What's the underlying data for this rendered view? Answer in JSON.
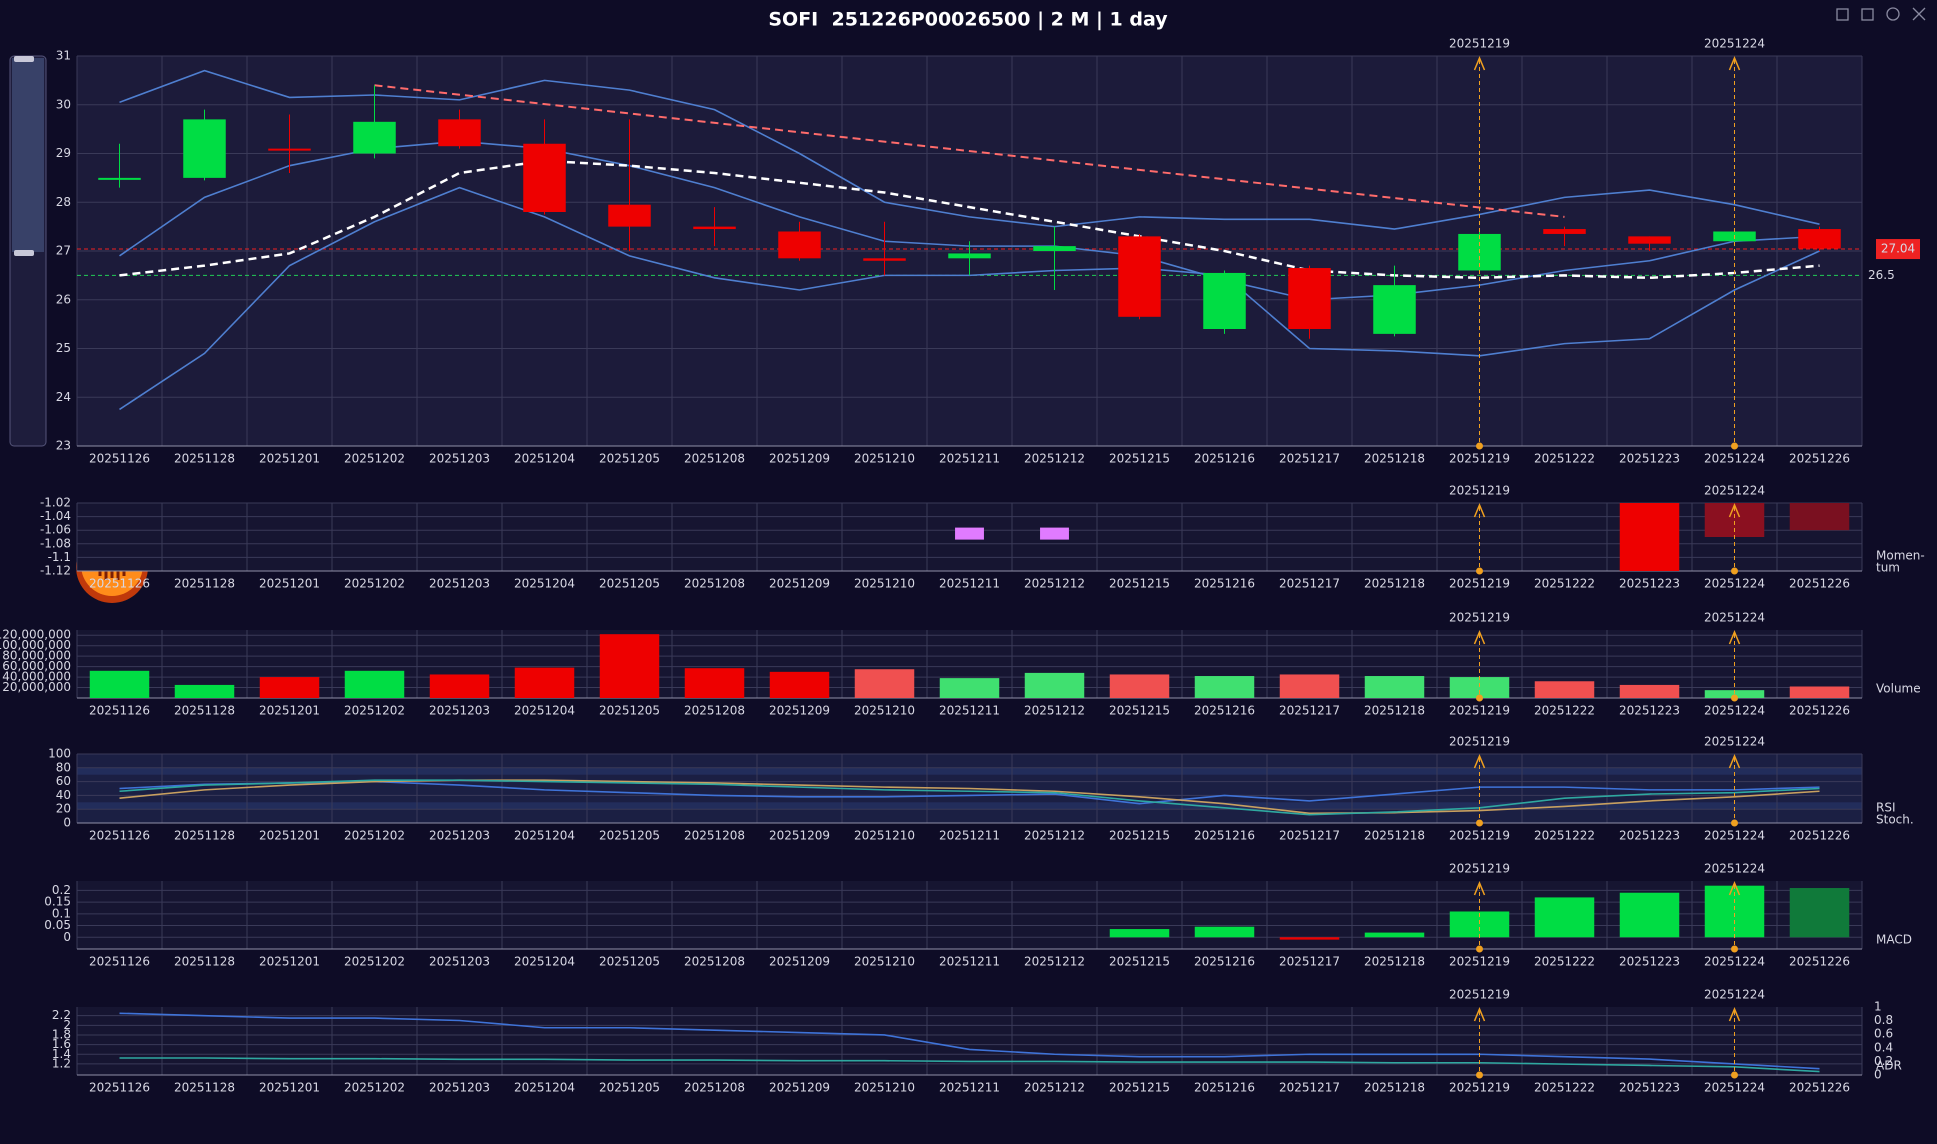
{
  "title": "SOFI  251226P00026500 | 2 M | 1 day",
  "chart_data": [
    {
      "type": "candlestick",
      "categories": [
        "20251126",
        "20251128",
        "20251201",
        "20251202",
        "20251203",
        "20251204",
        "20251205",
        "20251208",
        "20251209",
        "20251210",
        "20251211",
        "20251212",
        "20251215",
        "20251216",
        "20251217",
        "20251218",
        "20251219",
        "20251222",
        "20251223",
        "20251224",
        "20251226"
      ],
      "markers": [
        "20251219",
        "20251224"
      ],
      "open": [
        28.5,
        28.5,
        29.1,
        29.0,
        29.7,
        29.2,
        27.95,
        27.5,
        27.4,
        26.85,
        26.85,
        27.0,
        27.3,
        25.4,
        26.65,
        25.3,
        26.6,
        27.45,
        27.3,
        27.2,
        27.45
      ],
      "high": [
        29.2,
        29.9,
        29.8,
        30.4,
        29.9,
        29.7,
        29.7,
        27.9,
        27.6,
        27.6,
        27.2,
        27.5,
        27.35,
        26.6,
        26.7,
        26.7,
        27.4,
        27.5,
        27.3,
        27.45,
        27.5
      ],
      "low": [
        28.3,
        28.45,
        28.6,
        28.9,
        29.1,
        27.75,
        27.0,
        27.1,
        26.8,
        26.5,
        26.5,
        26.2,
        25.6,
        25.3,
        25.2,
        25.25,
        26.55,
        27.1,
        27.0,
        27.1,
        27.0
      ],
      "close": [
        28.5,
        29.7,
        29.08,
        29.65,
        29.15,
        27.8,
        27.5,
        27.45,
        26.85,
        26.8,
        26.95,
        27.1,
        25.65,
        26.55,
        25.4,
        26.3,
        27.35,
        27.35,
        27.15,
        27.4,
        27.05
      ],
      "up_color": "#00dd44",
      "down_color": "#ee0000",
      "overlays": [
        {
          "color": "#4f7fd0",
          "dash": false,
          "values": [
            30.05,
            30.7,
            30.15,
            30.2,
            30.1,
            30.5,
            30.3,
            29.9,
            29.0,
            28.0,
            27.7,
            27.5,
            27.7,
            27.65,
            27.65,
            27.45,
            27.75,
            28.1,
            28.25,
            27.95,
            27.55
          ]
        },
        {
          "color": "#4f7fd0",
          "dash": false,
          "values": [
            26.9,
            28.1,
            28.75,
            29.1,
            29.25,
            29.1,
            28.75,
            28.3,
            27.7,
            27.2,
            27.1,
            27.1,
            26.9,
            26.4,
            26.0,
            26.1,
            26.3,
            26.6,
            26.8,
            27.2,
            27.3
          ]
        },
        {
          "color": "#4f7fd0",
          "dash": false,
          "values": [
            23.75,
            24.9,
            26.7,
            27.6,
            28.3,
            27.7,
            26.9,
            26.45,
            26.2,
            26.5,
            26.5,
            26.6,
            26.65,
            26.5,
            25.0,
            24.95,
            24.85,
            25.1,
            25.2,
            26.2,
            27.0
          ]
        },
        {
          "color": "#ffffff",
          "dash": true,
          "values": [
            26.5,
            26.7,
            26.95,
            27.7,
            28.6,
            28.85,
            28.75,
            28.6,
            28.4,
            28.2,
            27.9,
            27.6,
            27.3,
            27.0,
            26.6,
            26.5,
            26.45,
            26.5,
            26.45,
            26.55,
            26.7
          ]
        }
      ],
      "trendline": {
        "x": [
          "20251202",
          "20251222"
        ],
        "values": [
          30.4,
          27.7
        ],
        "color": "#ff6b6b"
      },
      "hlines": [
        {
          "value": 27.04,
          "color": "#ee2222",
          "boxed": true
        },
        {
          "value": 26.5,
          "color": "#22cc55",
          "boxed": false
        }
      ],
      "ylim": [
        23,
        31
      ],
      "yticks": [
        23,
        24,
        25,
        26,
        27,
        28,
        29,
        30,
        31
      ]
    },
    {
      "type": "bar",
      "label_lines": [
        "Momen-",
        "tum"
      ],
      "ylim": [
        -1.12,
        -1.02
      ],
      "yticks": [
        -1.02,
        -1.04,
        -1.06,
        -1.08,
        -1.1,
        -1.12
      ],
      "series": [
        {
          "style": "bar",
          "colors": [
            null,
            null,
            null,
            null,
            null,
            null,
            null,
            null,
            null,
            null,
            null,
            null,
            null,
            null,
            null,
            null,
            null,
            null,
            "#ee0000",
            "#8b1020",
            "#7a1020"
          ],
          "values": [
            null,
            null,
            null,
            null,
            null,
            null,
            null,
            null,
            null,
            null,
            null,
            null,
            null,
            null,
            null,
            null,
            null,
            null,
            -1.12,
            -1.07,
            -1.06
          ]
        },
        {
          "style": "box",
          "color": "#e07bff",
          "values": [
            null,
            null,
            null,
            null,
            null,
            null,
            null,
            null,
            null,
            null,
            -1.065,
            -1.065,
            null,
            null,
            null,
            null,
            null,
            null,
            null,
            null,
            null
          ]
        }
      ]
    },
    {
      "type": "bar",
      "label_lines": [
        "Volume"
      ],
      "ylim": [
        0,
        130000000
      ],
      "yticks": [
        {
          "value": 20000000,
          "label": "20,000,000"
        },
        {
          "value": 40000000,
          "label": "40,000,000"
        },
        {
          "value": 60000000,
          "label": "60,000,000"
        },
        {
          "value": 80000000,
          "label": "80,000,000"
        },
        {
          "value": 100000000,
          "label": "100,000,000"
        },
        {
          "value": 120000000,
          "label": "120,000,000"
        }
      ],
      "series": [
        {
          "style": "bar",
          "colors": [
            "#00dd44",
            "#00dd44",
            "#ee0000",
            "#00dd44",
            "#ee0000",
            "#ee0000",
            "#ee0000",
            "#ee0000",
            "#ee0000",
            "#f05050",
            "#40e070",
            "#40e070",
            "#f05050",
            "#40e070",
            "#f05050",
            "#40e070",
            "#40e070",
            "#f05050",
            "#f05050",
            "#40e070",
            "#f05050"
          ],
          "values": [
            52000000,
            25000000,
            40000000,
            52000000,
            45000000,
            58000000,
            122000000,
            57000000,
            50000000,
            55000000,
            38000000,
            48000000,
            45000000,
            42000000,
            45000000,
            42000000,
            40000000,
            32000000,
            25000000,
            15000000,
            22000000
          ]
        }
      ]
    },
    {
      "type": "line",
      "label_lines": [
        "RSI",
        "Stoch."
      ],
      "ylim": [
        0,
        100
      ],
      "yticks": [
        0,
        20,
        40,
        60,
        80,
        100
      ],
      "series": [
        {
          "color": "#3f73d8",
          "values": [
            50,
            56,
            58,
            60,
            55,
            48,
            44,
            40,
            38,
            38,
            40,
            42,
            28,
            40,
            32,
            42,
            52,
            52,
            48,
            48,
            52
          ]
        },
        {
          "color": "#c8a060",
          "values": [
            36,
            48,
            55,
            60,
            62,
            62,
            60,
            58,
            55,
            52,
            50,
            46,
            38,
            28,
            14,
            15,
            18,
            24,
            32,
            38,
            46
          ]
        },
        {
          "color": "#2fa8a0",
          "values": [
            46,
            55,
            58,
            62,
            62,
            60,
            58,
            56,
            52,
            48,
            46,
            44,
            32,
            22,
            12,
            16,
            22,
            36,
            42,
            44,
            50
          ]
        }
      ]
    },
    {
      "type": "bar",
      "label_lines": [
        "MACD"
      ],
      "ylim": [
        -0.05,
        0.24
      ],
      "yticks": [
        0,
        0.05,
        0.1,
        0.15,
        0.2
      ],
      "series": [
        {
          "style": "bar",
          "colors": [
            null,
            null,
            null,
            null,
            null,
            null,
            null,
            null,
            null,
            null,
            null,
            null,
            "#00dd44",
            "#00dd44",
            "#ee0000",
            "#00dd44",
            "#00dd44",
            "#00dd44",
            "#00dd44",
            "#00dd44",
            "#107a3a"
          ],
          "values": [
            null,
            null,
            null,
            null,
            null,
            null,
            null,
            null,
            null,
            null,
            null,
            null,
            0.035,
            0.045,
            -0.01,
            0.02,
            0.11,
            0.17,
            0.19,
            0.22,
            0.21
          ]
        }
      ]
    },
    {
      "type": "line",
      "label_lines": [
        "ADR"
      ],
      "ylim": [
        0.97,
        2.38
      ],
      "yticks": [
        1.2,
        1.4,
        1.6,
        1.8,
        2,
        2.2
      ],
      "y2lim": [
        0,
        1
      ],
      "y2ticks": [
        0,
        0.2,
        0.4,
        0.6,
        0.8,
        1
      ],
      "series": [
        {
          "color": "#3f73d8",
          "values": [
            2.25,
            2.2,
            2.15,
            2.15,
            2.1,
            1.95,
            1.95,
            1.9,
            1.85,
            1.8,
            1.5,
            1.4,
            1.35,
            1.35,
            1.4,
            1.4,
            1.4,
            1.35,
            1.3,
            1.2,
            1.1
          ]
        },
        {
          "color": "#2fa8a0",
          "axis": "y2",
          "values": [
            0.25,
            0.25,
            0.24,
            0.24,
            0.23,
            0.23,
            0.22,
            0.22,
            0.21,
            0.21,
            0.2,
            0.2,
            0.19,
            0.19,
            0.19,
            0.18,
            0.18,
            0.16,
            0.14,
            0.12,
            0.05
          ]
        }
      ]
    }
  ]
}
